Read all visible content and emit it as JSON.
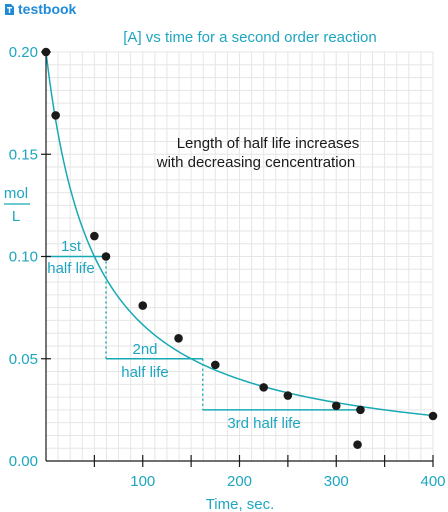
{
  "brand": {
    "name": "testbook",
    "icon": "testbook-logo-icon",
    "color": "#1f8bd8"
  },
  "chart_data": {
    "type": "scatter",
    "title": "[A] vs time for a second order reaction",
    "xlabel": "Time, sec.",
    "ylabel_numerator": "mol",
    "ylabel_denominator": "L",
    "xlim": [
      0,
      400
    ],
    "ylim": [
      0,
      0.2
    ],
    "x_ticks": [
      0,
      50,
      100,
      150,
      200,
      250,
      300,
      350,
      400
    ],
    "x_tick_labels": [
      "",
      "",
      "100",
      "",
      "200",
      "",
      "300",
      "",
      "400"
    ],
    "y_ticks": [
      0,
      0.05,
      0.1,
      0.15,
      0.2
    ],
    "y_tick_labels": [
      "0.00",
      "0.05",
      "0.10",
      "0.15",
      "0.20"
    ],
    "grid": true,
    "points": {
      "x": [
        0,
        10,
        50,
        62,
        100,
        137,
        175,
        225,
        250,
        300,
        325,
        400,
        322
      ],
      "y": [
        0.2,
        0.169,
        0.11,
        0.1,
        0.076,
        0.06,
        0.047,
        0.036,
        0.032,
        0.027,
        0.025,
        0.022,
        0.008
      ]
    },
    "fit_curve": {
      "form": "second_order",
      "a0": 0.2,
      "k": 0.1
    },
    "half_lives": [
      {
        "label_line1": "1st",
        "label_line2": "half life",
        "t_start": 0,
        "t_end": 62,
        "conc_start": 0.2,
        "conc_end": 0.1
      },
      {
        "label_line1": "2nd",
        "label_line2": "half life",
        "t_start": 62,
        "t_end": 162,
        "conc_start": 0.1,
        "conc_end": 0.05
      },
      {
        "label": "3rd half life",
        "t_start": 162,
        "t_end": 325,
        "conc_start": 0.05,
        "conc_end": 0.025
      }
    ],
    "annotation": {
      "line1": "Length of half life increases",
      "line2": "with decreasing cencentration"
    },
    "colors": {
      "curve": "#18a9b4",
      "text": "#1ea6c0",
      "points": "#1a1a1a",
      "grid": "#e6e6e6",
      "note": "#1a1a1a"
    }
  }
}
